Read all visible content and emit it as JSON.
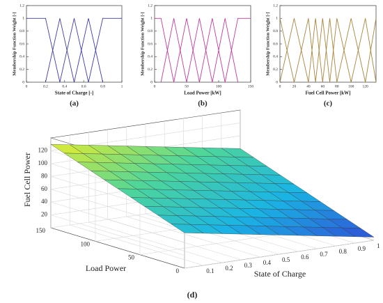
{
  "chart_data": [
    {
      "type": "line",
      "caption": "(a)",
      "xlabel": "State of Charge [-]",
      "ylabel": "Membership Function Weight [-]",
      "color": "#3b3ba8",
      "xlim": [
        0,
        1
      ],
      "ylim": [
        0,
        1.2
      ],
      "xticks": [
        0,
        0.2,
        0.4,
        0.6,
        0.8,
        1
      ],
      "yticks": [
        0,
        0.2,
        0.4,
        0.6,
        0.8,
        1,
        1.2
      ],
      "series": [
        {
          "x": [
            0,
            0.2,
            0.35
          ],
          "values": [
            1,
            1,
            0
          ]
        },
        {
          "x": [
            0.2,
            0.35,
            0.5
          ],
          "values": [
            0,
            1,
            0
          ]
        },
        {
          "x": [
            0.35,
            0.5,
            0.65
          ],
          "values": [
            0,
            1,
            0
          ]
        },
        {
          "x": [
            0.5,
            0.65,
            0.8
          ],
          "values": [
            0,
            1,
            0
          ]
        },
        {
          "x": [
            0.65,
            0.8,
            1
          ],
          "values": [
            0,
            1,
            1
          ]
        }
      ]
    },
    {
      "type": "line",
      "caption": "(b)",
      "xlabel": "Load Power [kW]",
      "ylabel": "Membership Function Weight [-]",
      "color": "#c03a9c",
      "xlim": [
        0,
        150
      ],
      "ylim": [
        0,
        1.2
      ],
      "xticks": [
        0,
        50,
        100,
        150
      ],
      "yticks": [
        0,
        0.2,
        0.4,
        0.6,
        0.8,
        1,
        1.2
      ],
      "series": [
        {
          "x": [
            0,
            10,
            30
          ],
          "values": [
            1,
            1,
            0
          ]
        },
        {
          "x": [
            10,
            30,
            50
          ],
          "values": [
            0,
            1,
            0
          ]
        },
        {
          "x": [
            30,
            50,
            70
          ],
          "values": [
            0,
            1,
            0
          ]
        },
        {
          "x": [
            50,
            70,
            90
          ],
          "values": [
            0,
            1,
            0
          ]
        },
        {
          "x": [
            70,
            90,
            110
          ],
          "values": [
            0,
            1,
            0
          ]
        },
        {
          "x": [
            90,
            110,
            130
          ],
          "values": [
            0,
            1,
            0
          ]
        },
        {
          "x": [
            110,
            130,
            150
          ],
          "values": [
            0,
            1,
            1
          ]
        }
      ]
    },
    {
      "type": "line",
      "caption": "(c)",
      "xlabel": "Fuel Cell Power [kW]",
      "ylabel": "Membership Function Weight [-]",
      "color": "#a8843a",
      "xlim": [
        0,
        135
      ],
      "ylim": [
        0,
        1.2
      ],
      "xticks": [
        0,
        20,
        40,
        60,
        80,
        100,
        120
      ],
      "yticks": [
        0,
        0.2,
        0.4,
        0.6,
        0.8,
        1,
        1.2
      ],
      "series": [
        {
          "x": [
            0,
            20
          ],
          "values": [
            1,
            0
          ]
        },
        {
          "x": [
            0,
            20,
            40
          ],
          "values": [
            0,
            1,
            0
          ]
        },
        {
          "x": [
            20,
            40,
            50
          ],
          "values": [
            0,
            1,
            0
          ]
        },
        {
          "x": [
            40,
            50,
            60
          ],
          "values": [
            0,
            1,
            0
          ]
        },
        {
          "x": [
            50,
            60,
            70
          ],
          "values": [
            0,
            1,
            0
          ]
        },
        {
          "x": [
            60,
            70,
            80
          ],
          "values": [
            0,
            1,
            0
          ]
        },
        {
          "x": [
            70,
            80,
            100
          ],
          "values": [
            0,
            1,
            0
          ]
        },
        {
          "x": [
            80,
            100,
            120
          ],
          "values": [
            0,
            1,
            0
          ]
        },
        {
          "x": [
            100,
            120,
            135
          ],
          "values": [
            0,
            1,
            0
          ]
        },
        {
          "x": [
            120,
            135
          ],
          "values": [
            0,
            1
          ]
        }
      ]
    },
    {
      "type": "surface",
      "caption": "(d)",
      "xlabel": "State of Charge",
      "ylabel": "Load Power",
      "zlabel": "Fuel Cell Power",
      "colormap": [
        "#2f4fd6",
        "#1ab4e4",
        "#4fd69a",
        "#e6ec30"
      ],
      "xlim": [
        0,
        1
      ],
      "ylim": [
        0,
        150
      ],
      "zlim": [
        0,
        140
      ],
      "xticks": [
        0.1,
        0.2,
        0.3,
        0.4,
        0.5,
        0.6,
        0.7,
        0.8,
        0.9,
        1
      ],
      "yticks": [
        0,
        50,
        100,
        150
      ],
      "zticks": [
        20,
        40,
        60,
        80,
        100,
        120
      ],
      "x": [
        0,
        0.1,
        0.2,
        0.3,
        0.4,
        0.5,
        0.6,
        0.7,
        0.8,
        0.9,
        1
      ],
      "y": [
        0,
        15,
        30,
        45,
        60,
        75,
        90,
        105,
        120,
        135,
        150
      ],
      "z": [
        [
          55,
          50,
          45,
          40,
          35,
          30,
          25,
          20,
          15,
          10,
          5
        ],
        [
          62.5,
          57.5,
          52.5,
          47.5,
          42.5,
          37.5,
          32.5,
          27.5,
          22.5,
          17.5,
          12.5
        ],
        [
          70,
          65,
          60,
          55,
          50,
          45,
          40,
          35,
          30,
          25,
          20
        ],
        [
          77.5,
          72.5,
          67.5,
          62.5,
          57.5,
          52.5,
          47.5,
          42.5,
          37.5,
          32.5,
          27.5
        ],
        [
          85,
          80,
          75,
          70,
          65,
          60,
          55,
          50,
          45,
          40,
          35
        ],
        [
          92.5,
          87.5,
          82.5,
          77.5,
          72.5,
          67.5,
          62.5,
          57.5,
          52.5,
          47.5,
          42.5
        ],
        [
          100,
          95,
          90,
          85,
          80,
          75,
          70,
          65,
          60,
          55,
          50
        ],
        [
          107.5,
          102.5,
          97.5,
          92.5,
          87.5,
          82.5,
          77.5,
          72.5,
          67.5,
          62.5,
          57.5
        ],
        [
          115,
          110,
          105,
          100,
          95,
          90,
          85,
          80,
          75,
          70,
          65
        ],
        [
          122.5,
          117.5,
          112.5,
          107.5,
          102.5,
          97.5,
          92.5,
          87.5,
          82.5,
          77.5,
          72.5
        ],
        [
          130,
          125,
          120,
          115,
          110,
          105,
          100,
          95,
          90,
          85,
          80
        ]
      ]
    }
  ]
}
